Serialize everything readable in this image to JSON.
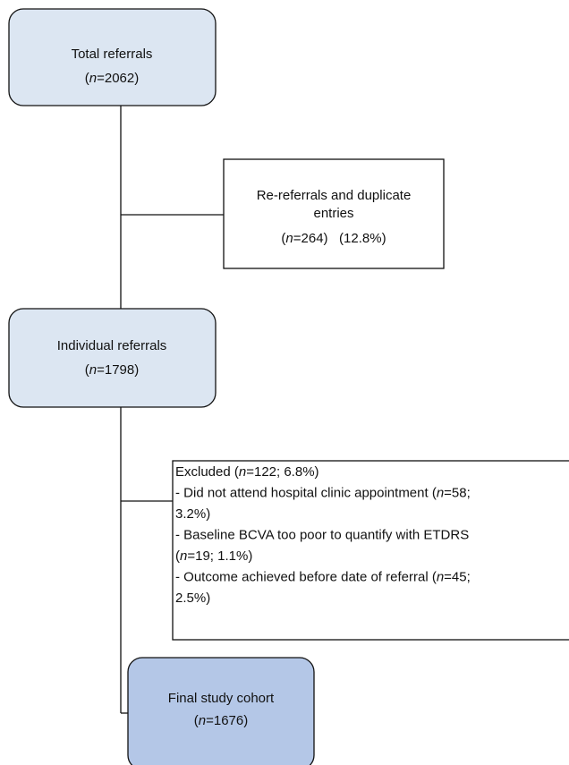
{
  "nodes": [
    {
      "lines": [
        [
          "Total referrals"
        ],
        [
          "(",
          "n",
          "=2062)"
        ]
      ]
    },
    {
      "lines": [
        [
          "Re-referrals and duplicate"
        ],
        [
          "entries"
        ],
        [
          "(",
          "n",
          "=264)   (12.8%)"
        ]
      ]
    },
    {
      "lines": [
        [
          "Individual referrals"
        ],
        [
          "(",
          "n",
          "=1798)"
        ]
      ]
    },
    {
      "lines": [
        [
          "Excluded (",
          "n",
          "=122; 6.8%)"
        ],
        [
          "- Did not attend hospital clinic appointment (",
          "n",
          "=58;"
        ],
        [
          "3.2%)"
        ],
        [
          "- Baseline BCVA too poor to quantify with ETDRS"
        ],
        [
          "(",
          "n",
          "=19; 1.1%)"
        ],
        [
          "- Outcome achieved before date of referral (",
          "n",
          "=45;"
        ],
        [
          "2.5%)"
        ]
      ]
    },
    {
      "lines": [
        [
          "Final study cohort"
        ],
        [
          "(",
          "n",
          "=1676)"
        ]
      ]
    }
  ]
}
